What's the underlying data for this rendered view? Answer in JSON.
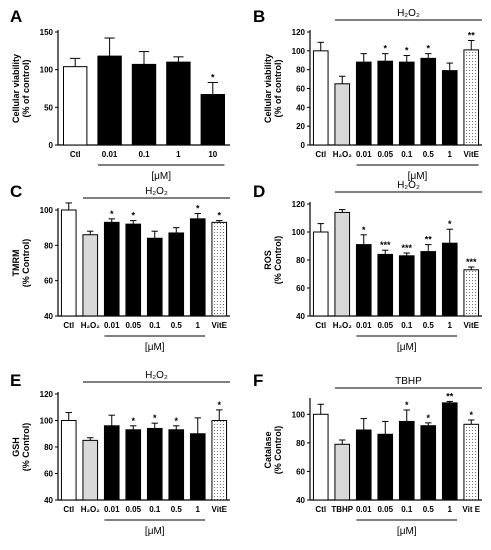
{
  "chart_data": [
    {
      "type": "bar",
      "panel_label": "A",
      "title": "",
      "treatment_label": "",
      "xlabel": "[μM]",
      "ylabel": "Cellular viability\n(% of control)",
      "ylim": [
        0,
        150
      ],
      "yticks": [
        0,
        50,
        100,
        150
      ],
      "categories": [
        "Ctl",
        "0.01",
        "0.1",
        "1",
        "10"
      ],
      "values": [
        104,
        118,
        107,
        110,
        67
      ],
      "errors": [
        11,
        24,
        17,
        7,
        16
      ],
      "significance": [
        "",
        "",
        "",
        "",
        "*"
      ],
      "fills": [
        "#ffffff",
        "#000000",
        "#000000",
        "#000000",
        "#000000"
      ],
      "underline_from": 1,
      "underline_to": 4
    },
    {
      "type": "bar",
      "panel_label": "B",
      "title": "",
      "treatment_label": "H₂O₂",
      "treatment_from": 1,
      "xlabel": "[μM]",
      "ylabel": "Cellular viability\n(% of control)",
      "ylim": [
        0,
        120
      ],
      "yticks": [
        0,
        20,
        40,
        60,
        80,
        100,
        120
      ],
      "categories": [
        "Ctl",
        "H₂O₂",
        "0.01",
        "0.05",
        "0.1",
        "0.5",
        "1",
        "VitE"
      ],
      "values": [
        100,
        65,
        88,
        89,
        88,
        92,
        79,
        101
      ],
      "errors": [
        9,
        8,
        9,
        8,
        7,
        5,
        8,
        10
      ],
      "significance": [
        "",
        "",
        "",
        "*",
        "*",
        "*",
        "",
        "**"
      ],
      "fills": [
        "#ffffff",
        "#d9d9d9",
        "#000000",
        "#000000",
        "#000000",
        "#000000",
        "#000000",
        "dots"
      ],
      "underline_from": 2,
      "underline_to": 7
    },
    {
      "type": "bar",
      "panel_label": "C",
      "title": "",
      "treatment_label": "H₂O₂",
      "treatment_from": 1,
      "xlabel": "[μM]",
      "ylabel": "TMRM\n(% Control)",
      "ylim": [
        40,
        100
      ],
      "yticks": [
        40,
        60,
        80,
        100
      ],
      "categories": [
        "Ctl",
        "H₂O₂",
        "0.01",
        "0.05",
        "0.1",
        "0.5",
        "1",
        "VitE"
      ],
      "values": [
        100,
        86,
        93,
        92,
        84,
        87,
        95,
        93
      ],
      "errors": [
        4,
        2,
        2,
        2,
        4,
        3,
        3,
        1
      ],
      "significance": [
        "",
        "",
        "*",
        "*",
        "",
        "",
        "*",
        "*"
      ],
      "fills": [
        "#ffffff",
        "#d9d9d9",
        "#000000",
        "#000000",
        "#000000",
        "#000000",
        "#000000",
        "dots"
      ],
      "underline_from": 2,
      "underline_to": 6
    },
    {
      "type": "bar",
      "panel_label": "D",
      "title": "",
      "treatment_label": "H₂O₂",
      "treatment_from": 1,
      "xlabel": "[μM]",
      "ylabel": "ROS\n(% Control)",
      "ylim": [
        40,
        120
      ],
      "yticks": [
        40,
        60,
        80,
        100,
        120
      ],
      "categories": [
        "Ctl",
        "H₂O₂",
        "0.01",
        "0.05",
        "0.1",
        "0.5",
        "1",
        "VitE"
      ],
      "values": [
        100,
        114,
        91,
        84,
        83,
        86,
        92,
        73
      ],
      "errors": [
        6,
        2,
        7,
        3,
        2,
        5,
        10,
        2
      ],
      "significance": [
        "",
        "",
        "*",
        "***",
        "***",
        "**",
        "*",
        "***"
      ],
      "fills": [
        "#ffffff",
        "#d9d9d9",
        "#000000",
        "#000000",
        "#000000",
        "#000000",
        "#000000",
        "dots"
      ],
      "underline_from": 2,
      "underline_to": 6
    },
    {
      "type": "bar",
      "panel_label": "E",
      "title": "",
      "treatment_label": "H₂O₂",
      "treatment_from": 1,
      "xlabel": "[μM]",
      "ylabel": "GSH\n(% Control)",
      "ylim": [
        40,
        120
      ],
      "yticks": [
        40,
        60,
        80,
        100,
        120
      ],
      "categories": [
        "Ctl",
        "H₂O₂",
        "0.01",
        "0.05",
        "0.1",
        "0.5",
        "1",
        "VitE"
      ],
      "values": [
        100,
        85,
        96,
        93,
        94,
        93,
        90,
        100
      ],
      "errors": [
        6,
        2,
        8,
        3,
        4,
        3,
        12,
        8
      ],
      "significance": [
        "",
        "",
        "",
        "*",
        "*",
        "*",
        "",
        "*"
      ],
      "fills": [
        "#ffffff",
        "#d9d9d9",
        "#000000",
        "#000000",
        "#000000",
        "#000000",
        "#000000",
        "dots"
      ],
      "underline_from": 2,
      "underline_to": 6
    },
    {
      "type": "bar",
      "panel_label": "F",
      "title": "",
      "treatment_label": "TBHP",
      "treatment_from": 1,
      "xlabel": "[μM]",
      "ylabel": "Catalase\n(% Control)",
      "ylim": [
        40,
        110
      ],
      "yticks": [
        40,
        60,
        80,
        100
      ],
      "categories": [
        "Ctl",
        "TBHP",
        "0.01",
        "0.05",
        "0.1",
        "0.5",
        "1",
        "Vit E"
      ],
      "values": [
        100,
        79,
        89,
        86,
        95,
        92,
        108,
        93
      ],
      "errors": [
        7,
        3,
        8,
        9,
        8,
        2,
        1,
        3
      ],
      "significance": [
        "",
        "",
        "",
        "",
        "*",
        "*",
        "**",
        "*"
      ],
      "fills": [
        "#ffffff",
        "#d9d9d9",
        "#000000",
        "#000000",
        "#000000",
        "#000000",
        "#000000",
        "dots"
      ],
      "underline_from": 2,
      "underline_to": 6
    }
  ]
}
